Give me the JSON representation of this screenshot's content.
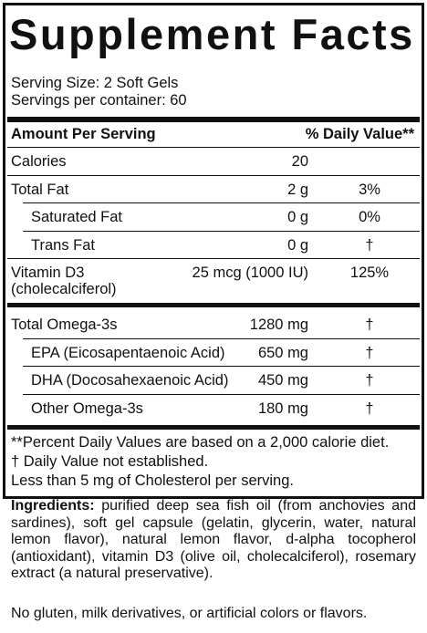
{
  "title": "Supplement Facts",
  "serving": [
    "Serving Size: 2 Soft Gels",
    "Servings per container: 60"
  ],
  "header": {
    "amount": "Amount Per Serving",
    "dv": "% Daily Value**"
  },
  "sections": [
    {
      "rows": [
        {
          "name": "Calories",
          "amount": "20"
        },
        {
          "name": "Total Fat",
          "amount": "2 g",
          "dv": "3%",
          "subrows": [
            {
              "name": "Saturated Fat",
              "amount": "0 g",
              "dv": "0%"
            },
            {
              "name": "Trans Fat",
              "amount": "0 g",
              "dv": "†"
            }
          ]
        },
        {
          "name": "Vitamin D3",
          "subname": "(cholecalciferol)",
          "amount": "25 mcg (1000 IU)",
          "dv": "125%"
        }
      ]
    },
    {
      "rows": [
        {
          "name": "Total Omega-3s",
          "amount": "1280 mg",
          "dv": "†",
          "subrows": [
            {
              "name": "EPA (Eicosapentaenoic Acid)",
              "amount": "650 mg",
              "dv": "†"
            },
            {
              "name": "DHA (Docosahexaenoic Acid)",
              "amount": "450 mg",
              "dv": "†"
            },
            {
              "name": "Other Omega-3s",
              "amount": "180 mg",
              "dv": "†"
            }
          ]
        }
      ]
    }
  ],
  "footnotes": [
    "**Percent Daily Values are based on a 2,000 calorie diet.",
    "†  Daily Value not established.",
    "Less than 5 mg of Cholesterol per serving."
  ],
  "ingredients": {
    "label": "Ingredients:",
    "text": " purified deep sea fish oil (from anchovies and sardines), soft gel capsule (gelatin, glycerin, water, natural lemon flavor), natural lemon flavor, d-alpha tocopherol (antioxidant), vitamin D3 (olive oil, cholecalciferol), rosemary extract (a natural preservative)."
  },
  "note": "No gluten, milk derivatives, or artificial colors or flavors."
}
